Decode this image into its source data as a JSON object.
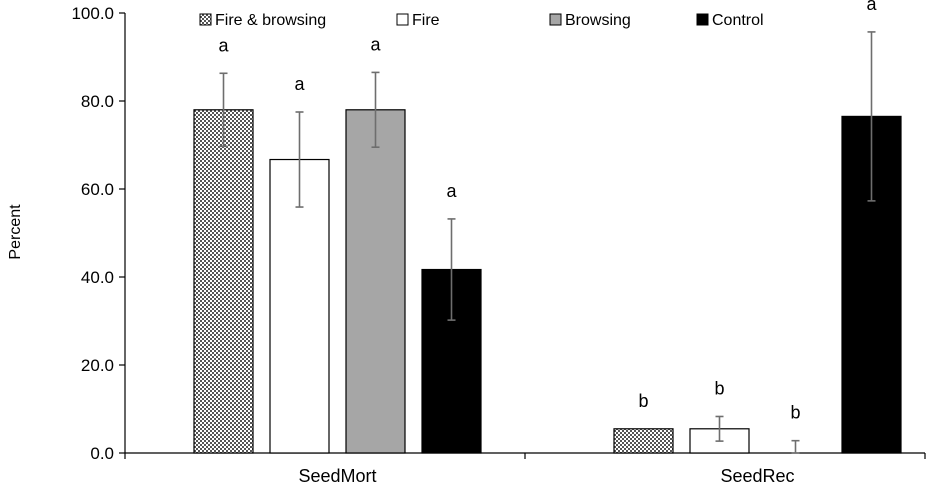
{
  "chart_data": {
    "type": "bar",
    "title": "",
    "xlabel": "",
    "ylabel": "Percent",
    "ylim": [
      0,
      100
    ],
    "yticks": [
      0,
      20,
      40,
      60,
      80,
      100
    ],
    "ytick_labels": [
      "0.0",
      "20.0",
      "40.0",
      "60.0",
      "80.0",
      "100.0"
    ],
    "categories": [
      "SeedMort",
      "SeedRec"
    ],
    "series": [
      {
        "name": "Fire & browsing",
        "style": "checker",
        "color": "#555555",
        "values": [
          78.0,
          5.5
        ],
        "errors": [
          8.3,
          0
        ],
        "letters": [
          "a",
          "b"
        ]
      },
      {
        "name": "Fire",
        "style": "white",
        "color": "#ffffff",
        "values": [
          66.7,
          5.5
        ],
        "errors": [
          10.8,
          2.8
        ],
        "letters": [
          "a",
          "b"
        ]
      },
      {
        "name": "Browsing",
        "style": "gray",
        "color": "#a6a6a6",
        "values": [
          78.0,
          0.0
        ],
        "errors": [
          8.5,
          2.8
        ],
        "letters": [
          "a",
          "b"
        ]
      },
      {
        "name": "Control",
        "style": "black",
        "color": "#000000",
        "values": [
          41.7,
          76.5
        ],
        "errors": [
          11.5,
          19.2
        ],
        "letters": [
          "a",
          "a"
        ]
      }
    ],
    "legend_position": "top",
    "grid": false
  }
}
